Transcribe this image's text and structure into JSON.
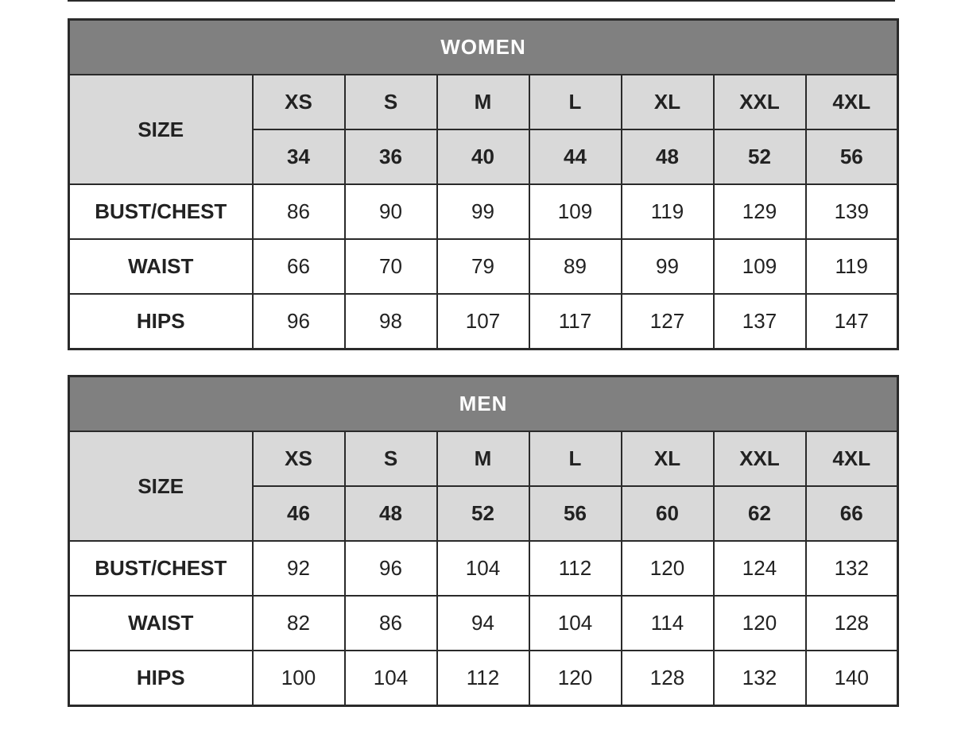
{
  "tables": [
    {
      "title": "WOMEN",
      "size_label": "SIZE",
      "letters": [
        "XS",
        "S",
        "M",
        "L",
        "XL",
        "XXL",
        "4XL"
      ],
      "numbers": [
        "34",
        "36",
        "40",
        "44",
        "48",
        "52",
        "56"
      ],
      "rows": [
        {
          "label": "BUST/CHEST",
          "values": [
            "86",
            "90",
            "99",
            "109",
            "119",
            "129",
            "139"
          ]
        },
        {
          "label": "WAIST",
          "values": [
            "66",
            "70",
            "79",
            "89",
            "99",
            "109",
            "119"
          ]
        },
        {
          "label": "HIPS",
          "values": [
            "96",
            "98",
            "107",
            "117",
            "127",
            "137",
            "147"
          ]
        }
      ]
    },
    {
      "title": "MEN",
      "size_label": "SIZE",
      "letters": [
        "XS",
        "S",
        "M",
        "L",
        "XL",
        "XXL",
        "4XL"
      ],
      "numbers": [
        "46",
        "48",
        "52",
        "56",
        "60",
        "62",
        "66"
      ],
      "rows": [
        {
          "label": "BUST/CHEST",
          "values": [
            "92",
            "96",
            "104",
            "112",
            "120",
            "124",
            "132"
          ]
        },
        {
          "label": "WAIST",
          "values": [
            "82",
            "86",
            "94",
            "104",
            "114",
            "120",
            "128"
          ]
        },
        {
          "label": "HIPS",
          "values": [
            "100",
            "104",
            "112",
            "120",
            "128",
            "132",
            "140"
          ]
        }
      ]
    }
  ],
  "colors": {
    "header": "#808080",
    "size_band": "#d9d9d9",
    "border": "#2a2a2a"
  }
}
